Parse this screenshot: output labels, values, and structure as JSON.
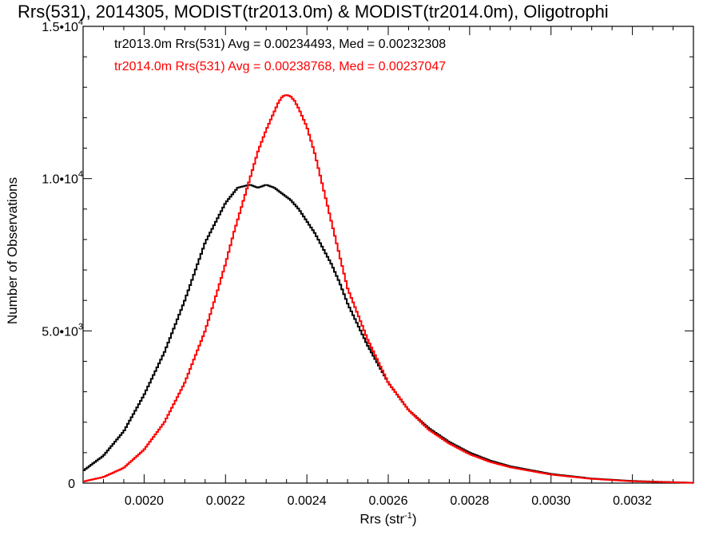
{
  "chart_data": {
    "type": "line",
    "title": "Rrs(531), 2014305, MODIST(tr2013.0m) & MODIST(tr2014.0m), Oligotrophi",
    "xlabel_base": "Rrs (str",
    "xlabel_sup": "-1",
    "xlabel_end": ")",
    "ylabel": "Number of Observations",
    "xlim": [
      0.00185,
      0.00335
    ],
    "ylim": [
      0,
      15000
    ],
    "x_ticks": [
      {
        "value": 0.002,
        "label": "0.0020"
      },
      {
        "value": 0.0022,
        "label": "0.0022"
      },
      {
        "value": 0.0024,
        "label": "0.0024"
      },
      {
        "value": 0.0026,
        "label": "0.0026"
      },
      {
        "value": 0.0028,
        "label": "0.0028"
      },
      {
        "value": 0.003,
        "label": "0.0030"
      },
      {
        "value": 0.0032,
        "label": "0.0032"
      }
    ],
    "y_ticks": [
      {
        "value": 0,
        "label": "0",
        "exp": ""
      },
      {
        "value": 5000,
        "label": "5.0•10",
        "exp": "3"
      },
      {
        "value": 10000,
        "label": "1.0•10",
        "exp": "4"
      },
      {
        "value": 15000,
        "label": "1.5•10",
        "exp": "4"
      }
    ],
    "annotations": [
      {
        "text": "tr2013.0m Rrs(531) Avg = 0.00234493, Med = 0.00232308",
        "color": "#000000"
      },
      {
        "text": "tr2014.0m Rrs(531) Avg = 0.00238768, Med = 0.00237047",
        "color": "#ff0000"
      }
    ],
    "series": [
      {
        "name": "tr2013.0m",
        "color": "#000000",
        "x": [
          0.00185,
          0.0019,
          0.00195,
          0.002,
          0.00205,
          0.0021,
          0.00215,
          0.0022,
          0.00223,
          0.00226,
          0.00228,
          0.0023,
          0.00232,
          0.00234,
          0.00236,
          0.00238,
          0.0024,
          0.00242,
          0.00244,
          0.00246,
          0.00248,
          0.0025,
          0.00255,
          0.0026,
          0.00265,
          0.0027,
          0.00275,
          0.0028,
          0.00285,
          0.0029,
          0.003,
          0.0031,
          0.0032,
          0.00335
        ],
        "y": [
          400,
          900,
          1700,
          2900,
          4300,
          6000,
          7900,
          9200,
          9700,
          9800,
          9700,
          9800,
          9700,
          9500,
          9300,
          9000,
          8600,
          8200,
          7700,
          7200,
          6600,
          5900,
          4500,
          3300,
          2400,
          1800,
          1350,
          1000,
          740,
          550,
          300,
          150,
          70,
          10
        ]
      },
      {
        "name": "tr2014.0m",
        "color": "#ff0000",
        "x": [
          0.00185,
          0.0019,
          0.00195,
          0.002,
          0.00205,
          0.0021,
          0.00215,
          0.00218,
          0.0022,
          0.00222,
          0.00224,
          0.00226,
          0.00228,
          0.0023,
          0.00232,
          0.00233,
          0.00234,
          0.00235,
          0.00236,
          0.00237,
          0.00238,
          0.0024,
          0.00242,
          0.00244,
          0.00246,
          0.00248,
          0.0025,
          0.00255,
          0.0026,
          0.00265,
          0.0027,
          0.00275,
          0.0028,
          0.00285,
          0.0029,
          0.003,
          0.0031,
          0.0032,
          0.00335
        ],
        "y": [
          50,
          200,
          500,
          1100,
          2000,
          3300,
          5000,
          6300,
          7200,
          8200,
          9100,
          10000,
          10900,
          11600,
          12200,
          12500,
          12700,
          12750,
          12700,
          12550,
          12300,
          11700,
          10800,
          9700,
          8600,
          7500,
          6400,
          4700,
          3300,
          2400,
          1750,
          1300,
          950,
          700,
          520,
          280,
          140,
          60,
          10
        ]
      }
    ]
  }
}
